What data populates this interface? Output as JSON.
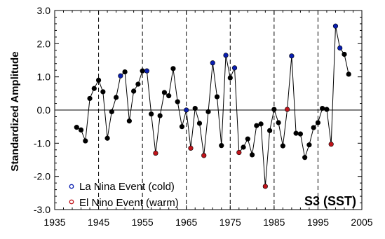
{
  "chart_data": {
    "type": "line",
    "ylabel": "Standardized Amplitude",
    "xlim": [
      1935,
      2005
    ],
    "ylim": [
      -3.0,
      3.0
    ],
    "x_ticks": [
      "1935",
      "1945",
      "1955",
      "1965",
      "1975",
      "1985",
      "1995",
      "2005"
    ],
    "y_ticks": [
      "3.0",
      "2.0",
      "1.0",
      "0.0",
      "-1.0",
      "-2.0",
      "-3.0"
    ],
    "dashed_vertical_lines": [
      1945,
      1955,
      1965,
      1975,
      1985,
      1995
    ],
    "zero_line": 0.0,
    "panel_label": "S3 (SST)",
    "legend": [
      {
        "label": "La Nina Event (cold)",
        "color": "#0a1fb0"
      },
      {
        "label": "El Nino Event (warm)",
        "color": "#c0141b"
      }
    ],
    "series": [
      {
        "x": [
          1940,
          1941,
          1942,
          1943,
          1944,
          1945,
          1946,
          1947,
          1948,
          1949,
          1950,
          1951,
          1952,
          1953,
          1954,
          1955,
          1956,
          1957,
          1958,
          1959,
          1960,
          1961,
          1962,
          1963,
          1964,
          1965,
          1966,
          1967,
          1968,
          1969,
          1970,
          1971,
          1972,
          1973,
          1974,
          1975,
          1976,
          1977,
          1978,
          1979,
          1980,
          1981,
          1982,
          1983,
          1984,
          1985,
          1986,
          1987,
          1988,
          1989,
          1990,
          1991,
          1992,
          1993,
          1994,
          1995,
          1996,
          1997,
          1998,
          1999,
          2000,
          2001,
          2002
        ],
        "y": [
          -0.52,
          -0.6,
          -0.93,
          0.35,
          0.65,
          0.9,
          0.55,
          -0.85,
          -0.05,
          0.38,
          1.03,
          1.15,
          -0.33,
          0.57,
          0.78,
          1.18,
          1.18,
          -0.12,
          -1.3,
          -0.17,
          0.53,
          0.43,
          1.25,
          0.25,
          -0.5,
          0.0,
          -1.15,
          0.05,
          -0.4,
          -1.37,
          -0.05,
          1.42,
          0.4,
          -1.07,
          1.65,
          0.97,
          1.27,
          -1.28,
          -1.12,
          -0.87,
          -1.35,
          -0.47,
          -0.42,
          -2.3,
          -0.62,
          0.02,
          -0.38,
          -1.08,
          0.02,
          1.63,
          -0.7,
          -0.72,
          -1.43,
          -1.05,
          -0.53,
          -0.38,
          0.05,
          0.02,
          -1.03,
          2.53,
          1.87,
          1.68,
          1.08
        ]
      }
    ],
    "event_markers": {
      "la_nina": [
        1950,
        1956,
        1965,
        1971,
        1974,
        1976,
        1989,
        1999,
        2000
      ],
      "el_nino": [
        1958,
        1966,
        1969,
        1977,
        1983,
        1988,
        1998
      ]
    },
    "colors": {
      "la_nina": "#0a1fb0",
      "el_nino": "#c0141b",
      "normal": "#000000",
      "line": "#000000"
    }
  }
}
